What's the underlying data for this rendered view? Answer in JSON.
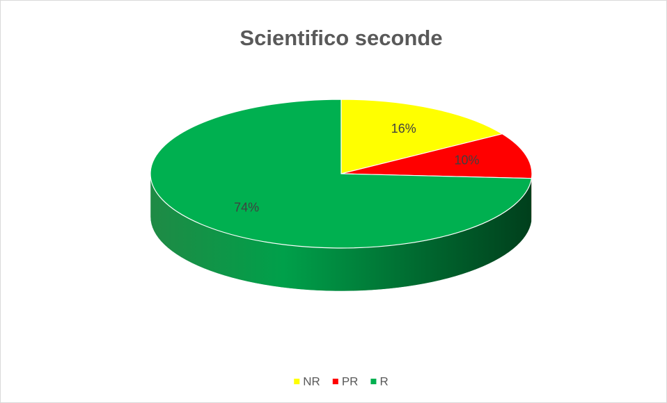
{
  "chart_data": {
    "type": "pie",
    "title": "Scientifico seconde",
    "categories": [
      "NR",
      "PR",
      "R"
    ],
    "values": [
      16,
      10,
      74
    ],
    "value_labels": [
      "16%",
      "10%",
      "74%"
    ],
    "colors": [
      "#ffff00",
      "#ff0000",
      "#00b050"
    ],
    "legend": "bottom"
  }
}
